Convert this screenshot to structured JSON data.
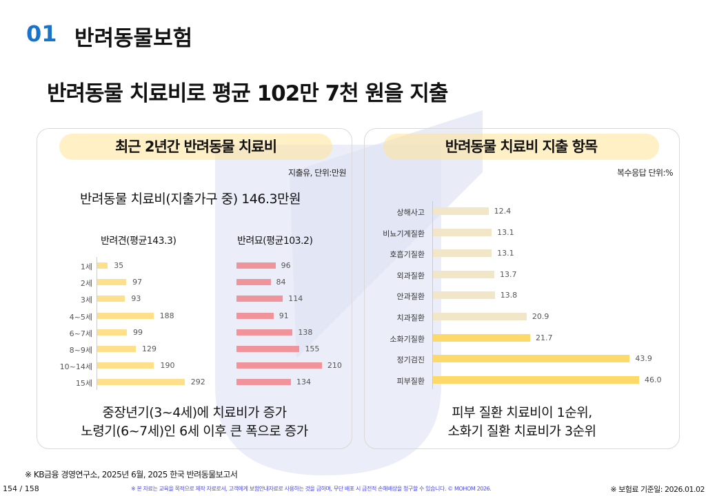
{
  "header": {
    "number": "01",
    "section": "반려동물보험"
  },
  "headline": "반려동물 치료비로 평균 102만 7천 원을 지출",
  "left": {
    "title": "최근 2년간 반려동물 치료비",
    "unit": "지출유, 단위:만원",
    "summary": "반려동물 치료비(지출가구 중) 146.3만원",
    "dog_title": "반려견(평균143.3)",
    "cat_title": "반려묘(평균103.2)",
    "conclusion1": "중장년기(3~4세)에 치료비가 증가",
    "conclusion2": "노령기(6~7세)인 6세 이후 큰 폭으로 증가"
  },
  "right": {
    "title": "반려동물 치료비 지출 항목",
    "unit": "복수응답 단위:%",
    "conclusion1": "피부 질환 치료비이 1순위,",
    "conclusion2": "소화기 질환 치료비가 3순위"
  },
  "chart_data": [
    {
      "type": "bar",
      "title": "반려견(평균143.3)",
      "categories": [
        "1세",
        "2세",
        "3세",
        "4~5세",
        "6~7세",
        "8~9세",
        "10~14세",
        "15세"
      ],
      "values": [
        35,
        97,
        93,
        188,
        99,
        129,
        190,
        292
      ],
      "color": "#ffe08a"
    },
    {
      "type": "bar",
      "title": "반려묘(평균103.2)",
      "categories": [
        "1세",
        "2세",
        "3세",
        "4~5세",
        "6~7세",
        "8~9세",
        "10~14세",
        "15세"
      ],
      "values": [
        96,
        84,
        114,
        91,
        138,
        155,
        210,
        134
      ],
      "color": "#f0939b"
    },
    {
      "type": "bar",
      "title": "반려동물 치료비 지출 항목",
      "categories": [
        "상해사고",
        "비뇨기계질환",
        "호흡기질환",
        "외과질환",
        "안과질환",
        "치과질환",
        "소화기질환",
        "정기검진",
        "피부질환"
      ],
      "values": [
        12.4,
        13.1,
        13.1,
        13.7,
        13.8,
        20.9,
        21.7,
        43.9,
        46.0
      ],
      "highlight": [
        false,
        false,
        false,
        false,
        false,
        false,
        true,
        true,
        true
      ],
      "colors": {
        "normal": "#f2e6c8",
        "highlight": "#fdd96a"
      }
    }
  ],
  "footer": {
    "source": "※ KB금융 경영연구소, 2025년 6월, 2025 한국 반려동물보고서",
    "page": "154 / 158",
    "notice": "※ 본 자료는 교육을 목적으로 제작 자료로서, 고객에게 보험안내자료로 사용하는 것을 금하며, 무단 배포 시 금전적 손해배상을 청구할 수 있습니다. © MOHOM 2026.",
    "date": "※ 보험료 기준일: 2026.01.02"
  }
}
